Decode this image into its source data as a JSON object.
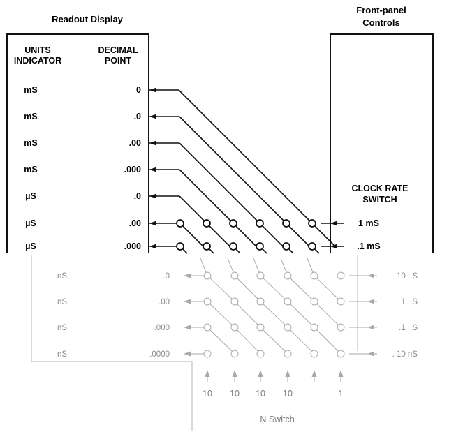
{
  "titles": {
    "readout": "Readout Display",
    "front_panel_line1": "Front-panel",
    "front_panel_line2": "Controls"
  },
  "headers": {
    "units_line1": "UNITS",
    "units_line2": "INDICATOR",
    "decimal_line1": "DECIMAL",
    "decimal_line2": "POINT"
  },
  "clock_rate_switch": {
    "line1": "CLOCK RATE",
    "line2": "SWITCH"
  },
  "rows": [
    {
      "unit": "mS",
      "decimal": "0",
      "rate": ""
    },
    {
      "unit": "mS",
      "decimal": ".0",
      "rate": ""
    },
    {
      "unit": "mS",
      "decimal": ".00",
      "rate": ""
    },
    {
      "unit": "mS",
      "decimal": ".000",
      "rate": ""
    },
    {
      "unit": "µS",
      "decimal": ".0",
      "rate": ""
    },
    {
      "unit": "µS",
      "decimal": ".00",
      "rate": "1 mS"
    },
    {
      "unit": "µS",
      "decimal": ".000",
      "rate": ".1 mS"
    },
    {
      "unit": "nS",
      "decimal": ".0",
      "rate": "10 ..S"
    },
    {
      "unit": "nS",
      "decimal": ".00",
      "rate": "1 ..S"
    },
    {
      "unit": "nS",
      "decimal": ".000",
      "rate": ".1 ..S"
    },
    {
      "unit": "nS",
      "decimal": ".0000",
      "rate": ". 10 nS"
    }
  ],
  "n_switch": {
    "label": "N Switch",
    "values": [
      "10",
      "10",
      "10",
      "10",
      "",
      "1"
    ]
  }
}
